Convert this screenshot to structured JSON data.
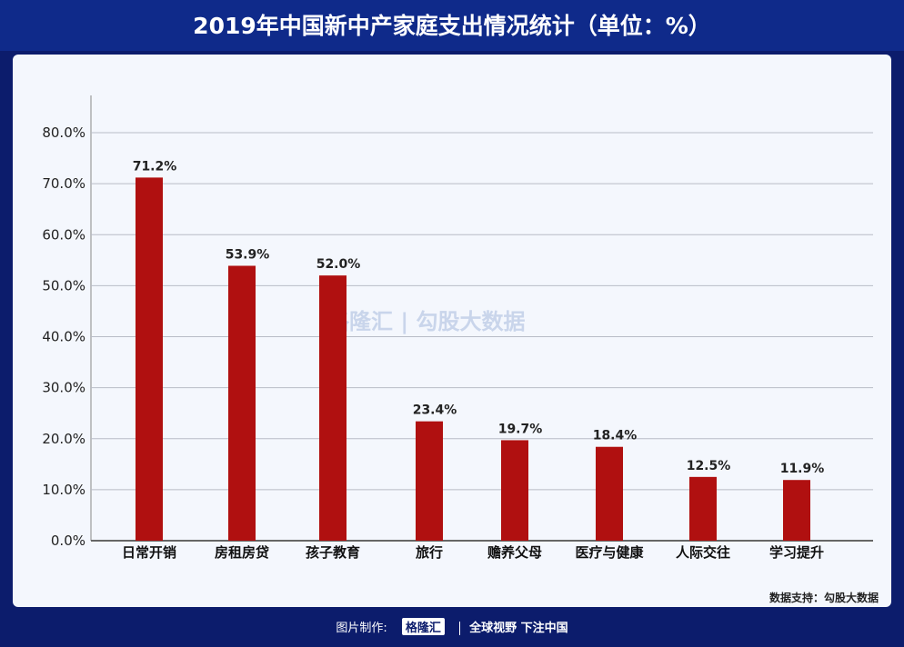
{
  "title": "2019年中国新中产家庭支出情况统计（单位：%）",
  "source": "数据支持：勾股大数据",
  "footer": {
    "made_by": "图片制作:",
    "logo": "格隆汇",
    "slogan": "全球视野 下注中国"
  },
  "watermark": "格隆汇 | 勾股大数据",
  "colors": {
    "bar": "#b01010",
    "background": "#0c1c6c",
    "panel": "#f4f7fd"
  },
  "chart_data": {
    "type": "bar",
    "title": "2019年中国新中产家庭支出情况统计（单位：%）",
    "categories": [
      "日常开销",
      "房租房贷",
      "孩子教育",
      "旅行",
      "赡养父母",
      "医疗与健康",
      "人际交往",
      "学习提升"
    ],
    "values": [
      71.2,
      53.9,
      52.0,
      23.4,
      19.7,
      18.4,
      12.5,
      11.9
    ],
    "data_labels": [
      "71.2%",
      "53.9%",
      "52.0%",
      "23.4%",
      "19.7%",
      "18.4%",
      "12.5%",
      "11.9%"
    ],
    "yticks": [
      "0.0%",
      "10.0%",
      "20.0%",
      "30.0%",
      "40.0%",
      "50.0%",
      "60.0%",
      "70.0%",
      "80.0%"
    ],
    "ylim": [
      0,
      80
    ],
    "grid": true,
    "xlabel": "",
    "ylabel": ""
  }
}
